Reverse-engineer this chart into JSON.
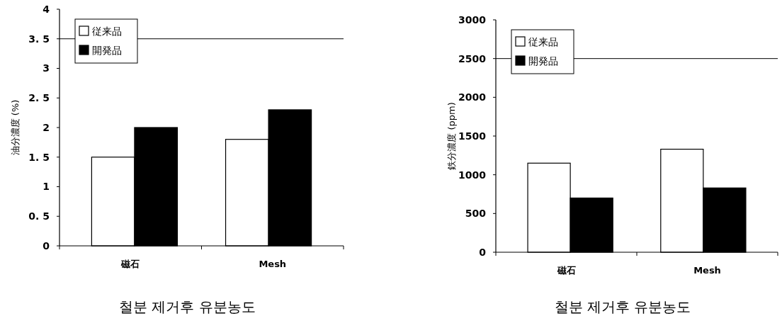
{
  "chart_data": [
    {
      "type": "bar",
      "categories": [
        "磁石",
        "Mesh"
      ],
      "ylabel": "油分濃度 (%)",
      "ylim": [
        0,
        4
      ],
      "yticks": [
        0,
        {
          "value": 0.5,
          "label": "0. 5"
        },
        1,
        {
          "value": 1.5,
          "label": "1. 5"
        },
        2,
        {
          "value": 2.5,
          "label": "2. 5"
        },
        3,
        {
          "value": 3.5,
          "label": "3. 5"
        },
        4
      ],
      "legend": "top left",
      "grid": false,
      "series": [
        {
          "name": "従来品",
          "color": "#ffffff",
          "values": [
            1.5,
            1.8
          ]
        },
        {
          "name": "開発品",
          "color": "#000000",
          "values": [
            2.0,
            2.3
          ]
        }
      ],
      "ref_lines": [
        {
          "axis": "y",
          "value": 3.5,
          "color": "#000000"
        }
      ],
      "annotations": [
        "철분 제거후 유분농도"
      ]
    },
    {
      "type": "bar",
      "categories": [
        "磁石",
        "Mesh"
      ],
      "ylabel": "鉄分濃度 (ppm)",
      "ylim": [
        0,
        3000
      ],
      "yticks": [
        0,
        500,
        1000,
        1500,
        2000,
        2500,
        3000
      ],
      "legend": "top left",
      "grid": false,
      "series": [
        {
          "name": "従来品",
          "color": "#ffffff",
          "values": [
            1150,
            1330
          ]
        },
        {
          "name": "開発品",
          "color": "#000000",
          "values": [
            700,
            830
          ]
        }
      ],
      "ref_lines": [
        {
          "axis": "y",
          "value": 2500,
          "color": "#000000"
        }
      ],
      "annotations": [
        "철분 제거후 유분농도"
      ]
    }
  ]
}
